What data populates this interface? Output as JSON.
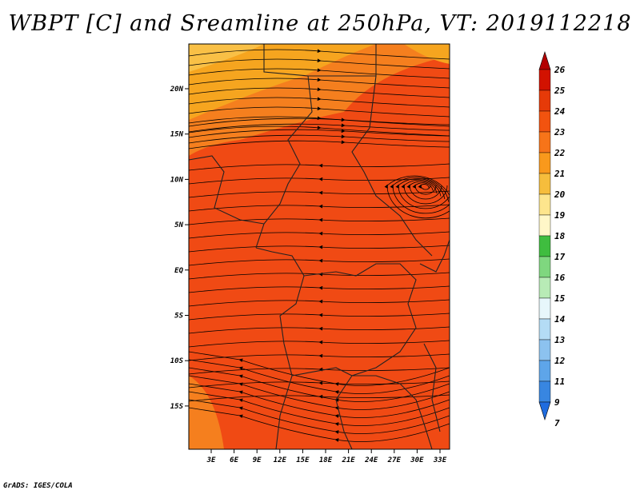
{
  "title": "WBPT [C] and Sreamline at 250hPa, VT: 2019112218",
  "credit": "GrADS: IGES/COLA",
  "map": {
    "lat_ticks": [
      "20N",
      "15N",
      "10N",
      "5N",
      "EQ",
      "5S",
      "10S",
      "15S"
    ],
    "lon_ticks": [
      "3E",
      "6E",
      "9E",
      "12E",
      "15E",
      "18E",
      "21E",
      "24E",
      "27E",
      "30E",
      "33E"
    ],
    "fill_colors": {
      "dominant": "#f04a14",
      "mid": "#f57f1e",
      "high": "#f6a51f"
    }
  },
  "colorbar": {
    "labels": [
      "26",
      "25",
      "24",
      "23",
      "22",
      "21",
      "20",
      "19",
      "18",
      "17",
      "16",
      "15",
      "14",
      "13",
      "12",
      "11",
      "9",
      "7"
    ],
    "colors": [
      "#b30000",
      "#d21200",
      "#e63a08",
      "#f2530f",
      "#f77419",
      "#f9991c",
      "#f6bd3c",
      "#fde58d",
      "#fff7c8",
      "#3fbd3f",
      "#7fd77f",
      "#b8ebb6",
      "#e7f7fb",
      "#b4dcf5",
      "#8cc2ef",
      "#5ea5e9",
      "#3886e1",
      "#1f6cdf"
    ]
  }
}
